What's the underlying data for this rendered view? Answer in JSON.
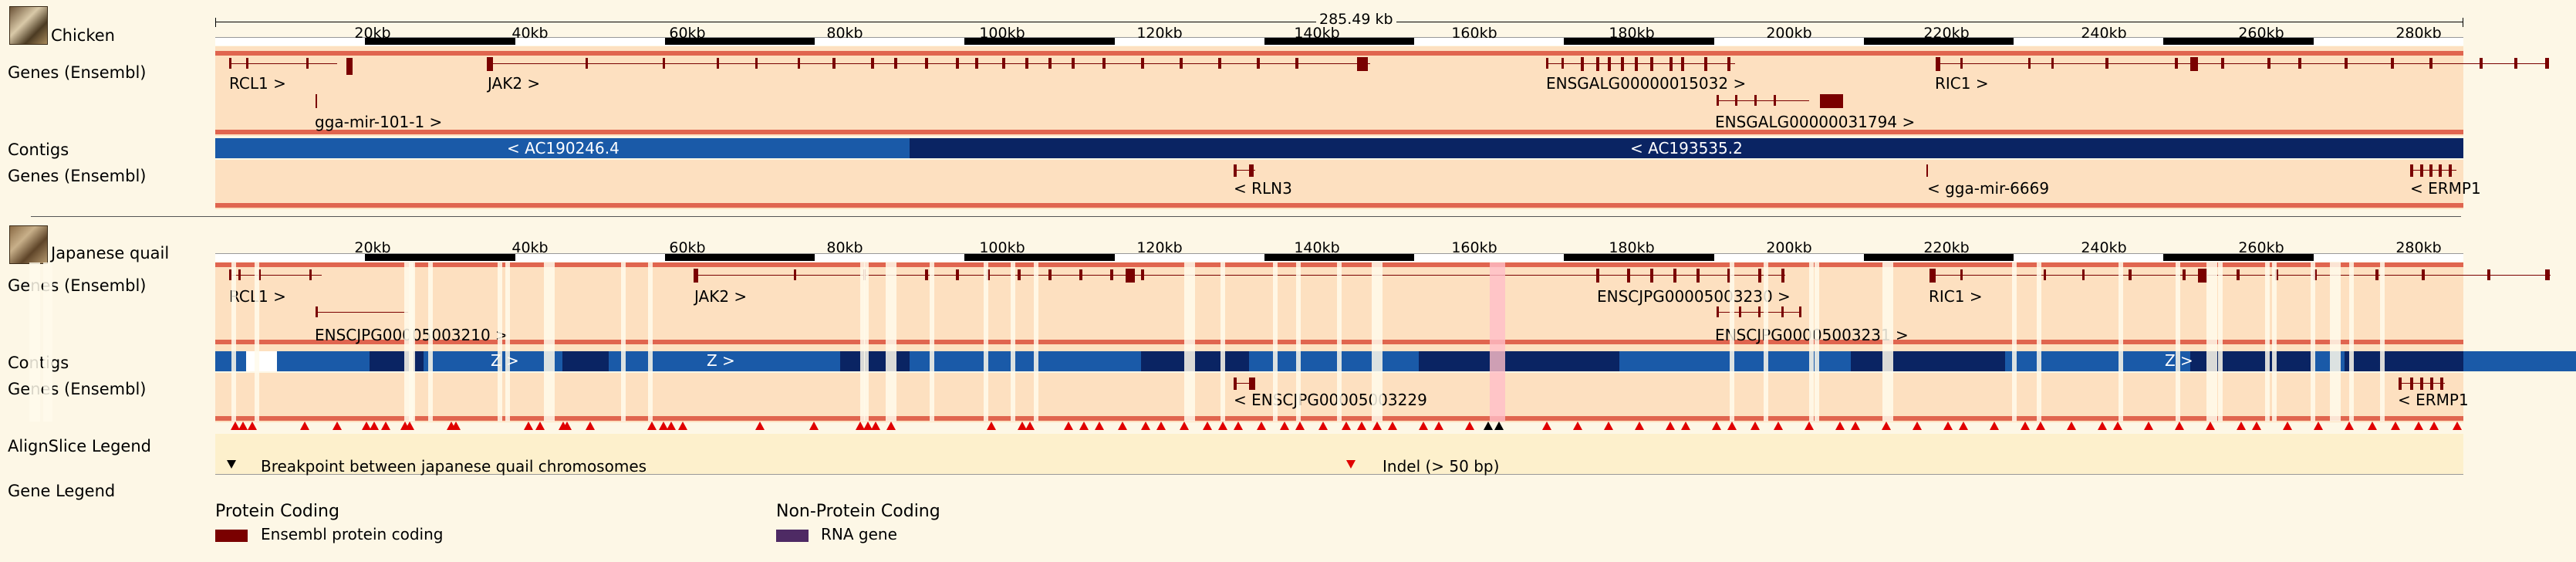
{
  "scale": {
    "total": "285.49 kb"
  },
  "kb_ticks": [
    "20kb",
    "40kb",
    "60kb",
    "80kb",
    "100kb",
    "120kb",
    "140kb",
    "160kb",
    "180kb",
    "200kb",
    "220kb",
    "240kb",
    "260kb",
    "280kb"
  ],
  "chicken": {
    "species": "Chicken",
    "genes_label": "Genes (Ensembl)",
    "contigs_label": "Contigs",
    "genes_label_rev": "Genes (Ensembl)",
    "genes_fwd": [
      "RCL1 >",
      "gga-mir-101-1 >",
      "JAK2 >",
      "ENSGALG00000015032 >",
      "ENSGALG00000031794 >",
      "RIC1 >"
    ],
    "contigs": [
      "< AC190246.4",
      "< AC193535.2"
    ],
    "genes_rev": [
      "< RLN3",
      "< gga-mir-6669",
      "< ERMP1"
    ]
  },
  "quail": {
    "species": "Japanese quail",
    "genes_label": "Genes (Ensembl)",
    "contigs_label": "Contigs",
    "genes_label_rev": "Genes (Ensembl)",
    "genes_fwd": [
      "RCL1 >",
      "ENSCJPG00005003210 >",
      "JAK2 >",
      "ENSCJPG00005003230 >",
      "ENSCJPG00005003231 >",
      "RIC1 >"
    ],
    "contigs": [
      "Z >",
      "Z >",
      "Z >"
    ],
    "genes_rev": [
      "< ENSCJPG00005003229",
      "< ERMP1"
    ]
  },
  "alignslice_legend": {
    "label": "AlignSlice Legend",
    "breakpoint": "Breakpoint between japanese quail chromosomes",
    "indel": "Indel (> 50 bp)"
  },
  "gene_legend": {
    "label": "Gene Legend",
    "protein_heading": "Protein Coding",
    "protein_item": "Ensembl protein coding",
    "nonprotein_heading": "Non-Protein Coding",
    "nonprotein_item": "RNA gene"
  },
  "colors": {
    "gene_bg": "#fde0c0",
    "gene": "#7a0000",
    "contig_light": "#1a5aa8",
    "contig_dark": "#0a2463",
    "rna": "#4e2a64",
    "indel": "#e00000"
  }
}
